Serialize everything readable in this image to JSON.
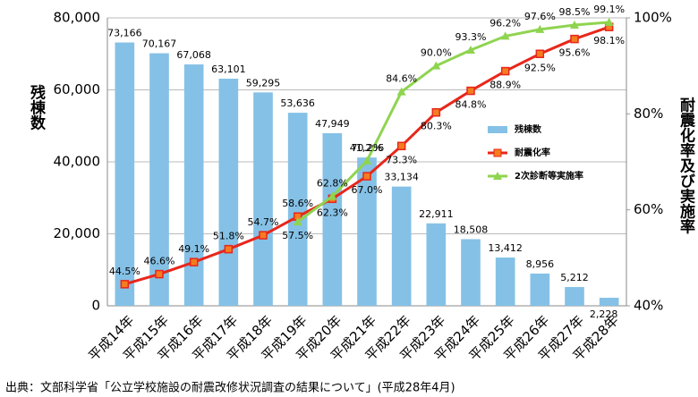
{
  "chart_data": {
    "type": "bar",
    "categories": [
      "平成14年",
      "平成15年",
      "平成16年",
      "平成17年",
      "平成18年",
      "平成19年",
      "平成20年",
      "平成21年",
      "平成22年",
      "平成23年",
      "平成24年",
      "平成25年",
      "平成26年",
      "平成27年",
      "平成28年"
    ],
    "series": [
      {
        "name": "残棟数",
        "type": "bar",
        "color": "#85c1e6",
        "values": [
          73166,
          70167,
          67068,
          63101,
          59295,
          53636,
          47949,
          41206,
          33134,
          22911,
          18508,
          13412,
          8956,
          5212,
          2228
        ],
        "value_labels": [
          "73,166",
          "70,167",
          "67,068",
          "63,101",
          "59,295",
          "53,636",
          "47,949",
          "41,206",
          "33,134",
          "22,911",
          "18,508",
          "13,412",
          "8,956",
          "5,212",
          "2,228"
        ]
      },
      {
        "name": "耐震化率",
        "type": "line",
        "axis": "y2",
        "color": "#e8261b",
        "marker": "square",
        "values": [
          44.5,
          46.6,
          49.1,
          51.8,
          54.7,
          58.6,
          62.3,
          67.0,
          73.3,
          80.3,
          84.8,
          88.9,
          92.5,
          95.6,
          98.1
        ],
        "value_labels": [
          "44.5%",
          "46.6%",
          "49.1%",
          "51.8%",
          "54.7%",
          "58.6%",
          "62.3%",
          "67.0%",
          "73.3%",
          "80.3%",
          "84.8%",
          "88.9%",
          "92.5%",
          "95.6%",
          "98.1%"
        ]
      },
      {
        "name": "2次診断等実施率",
        "type": "line",
        "axis": "y2",
        "color": "#8fd450",
        "marker": "triangle",
        "values": [
          null,
          null,
          null,
          null,
          null,
          57.5,
          62.8,
          70.2,
          84.6,
          90.0,
          93.3,
          96.2,
          97.6,
          98.5,
          99.1
        ],
        "value_labels": [
          null,
          null,
          null,
          null,
          null,
          "57.5%",
          "62.8%",
          "70.2%",
          "84.6%",
          "90.0%",
          "93.3%",
          "96.2%",
          "97.6%",
          "98.5%",
          "99.1%"
        ]
      }
    ],
    "ylabel": "残棟数",
    "y2label": "耐震化率及び実施率",
    "ylim": [
      0,
      80000
    ],
    "yticks": [
      0,
      {
        "value": 20000,
        "label": "20,000"
      },
      {
        "value": 40000,
        "label": "40,000"
      },
      {
        "value": 60000,
        "label": "60,000"
      },
      {
        "value": 80000,
        "label": "80,000"
      }
    ],
    "y2lim": [
      40,
      100
    ],
    "y2ticks": [
      {
        "value": 40,
        "label": "40%"
      },
      {
        "value": 60,
        "label": "60%"
      },
      {
        "value": 80,
        "label": "80%"
      },
      {
        "value": 100,
        "label": "100%"
      }
    ],
    "grid": true,
    "source": "出典：文部科学省「公立学校施設の耐震改修状況調査の結果について」(平成28年4月)"
  }
}
